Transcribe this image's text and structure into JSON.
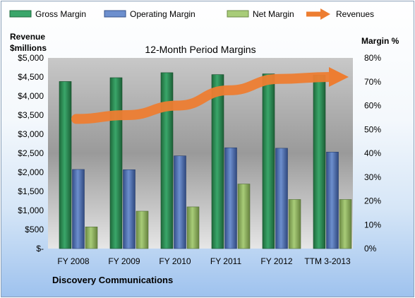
{
  "chart_data": {
    "type": "bar",
    "title": "12-Month Period Margins",
    "subtitle": "Discovery Communications",
    "ylabel_left": "Revenue $millions",
    "ylabel_right": "Margin %",
    "categories": [
      "FY 2008",
      "FY 2009",
      "FY 2010",
      "FY 2011",
      "FY 2012",
      "TTM 3-2013"
    ],
    "left_axis": {
      "min": 0,
      "max": 5000,
      "step": 500,
      "tick_labels": [
        "$-",
        "$500",
        "$1,000",
        "$1,500",
        "$2,000",
        "$2,500",
        "$3,000",
        "$3,500",
        "$4,000",
        "$4,500",
        "$5,000"
      ]
    },
    "right_axis": {
      "min": 0,
      "max": 80,
      "step": 10,
      "tick_labels": [
        "0%",
        "10%",
        "20%",
        "30%",
        "40%",
        "50%",
        "60%",
        "70%",
        "80%"
      ]
    },
    "series": [
      {
        "name": "Gross Margin",
        "type": "bar",
        "axis": "right",
        "color": "#2e8b57",
        "values": [
          70.1,
          71.7,
          73.8,
          73.0,
          73.3,
          72.8
        ]
      },
      {
        "name": "Operating Margin",
        "type": "bar",
        "axis": "right",
        "color": "#4a6fb5",
        "values": [
          33.2,
          33.1,
          38.9,
          42.3,
          42.1,
          40.5
        ]
      },
      {
        "name": "Net Margin",
        "type": "bar",
        "axis": "right",
        "color": "#8fb360",
        "values": [
          9.1,
          15.7,
          17.5,
          27.1,
          20.6,
          20.6
        ]
      },
      {
        "name": "Revenues",
        "type": "line",
        "axis": "left",
        "color": "#ed7d31",
        "values": [
          3400,
          3500,
          3750,
          4150,
          4450,
          4500
        ]
      }
    ],
    "legend": "top",
    "grid": false
  }
}
